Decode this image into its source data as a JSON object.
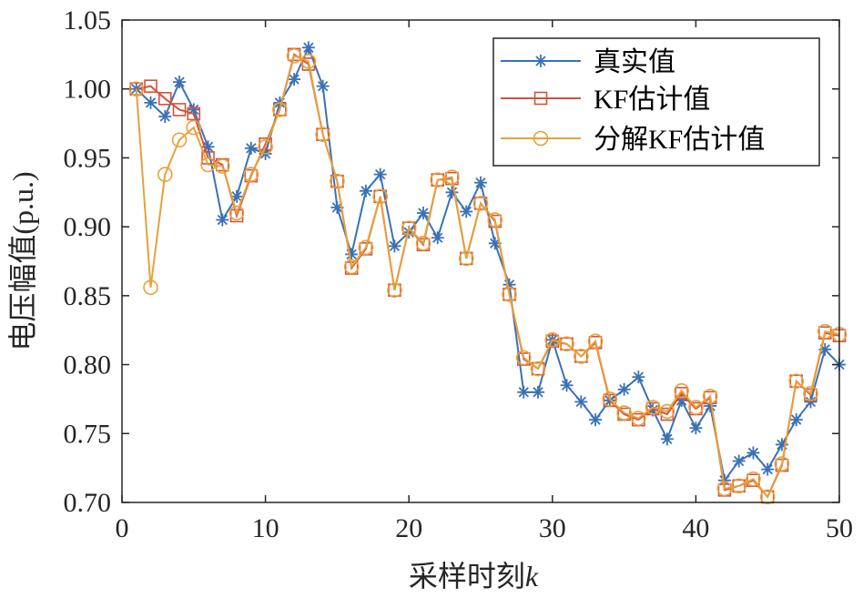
{
  "chart_data": {
    "type": "line",
    "xlabel": "采样时刻",
    "xlabel_var": "k",
    "ylabel": "电压幅值(p.u.)",
    "xlim": [
      0,
      50
    ],
    "ylim": [
      0.7,
      1.05
    ],
    "xticks": [
      0,
      10,
      20,
      30,
      40,
      50
    ],
    "xtick_labels": [
      "0",
      "10",
      "20",
      "30",
      "40",
      "50"
    ],
    "yticks": [
      0.7,
      0.75,
      0.8,
      0.85,
      0.9,
      0.95,
      1.0,
      1.05
    ],
    "ytick_labels": [
      "0.70",
      "0.75",
      "0.80",
      "0.85",
      "0.90",
      "0.95",
      "1.00",
      "1.05"
    ],
    "grid": false,
    "legend_position": "top-right",
    "x": [
      1,
      2,
      3,
      4,
      5,
      6,
      7,
      8,
      9,
      10,
      11,
      12,
      13,
      14,
      15,
      16,
      17,
      18,
      19,
      20,
      21,
      22,
      23,
      24,
      25,
      26,
      27,
      28,
      29,
      30,
      31,
      32,
      33,
      34,
      35,
      36,
      37,
      38,
      39,
      40,
      41,
      42,
      43,
      44,
      45,
      46,
      47,
      48,
      49,
      50
    ],
    "series": [
      {
        "name": "真实值",
        "color": "#3a72b5",
        "marker": "asterisk",
        "values": [
          1.0,
          0.99,
          0.98,
          1.005,
          0.985,
          0.958,
          0.905,
          0.922,
          0.957,
          0.953,
          0.99,
          1.007,
          1.03,
          1.002,
          0.914,
          0.88,
          0.926,
          0.938,
          0.886,
          0.896,
          0.91,
          0.892,
          0.925,
          0.911,
          0.932,
          0.888,
          0.858,
          0.78,
          0.78,
          0.818,
          0.785,
          0.773,
          0.76,
          0.774,
          0.782,
          0.791,
          0.767,
          0.746,
          0.774,
          0.754,
          0.77,
          0.716,
          0.73,
          0.736,
          0.724,
          0.742,
          0.76,
          0.773,
          0.811,
          0.8
        ]
      },
      {
        "name": "KF估计值",
        "color": "#d1533d",
        "marker": "square",
        "values": [
          1.0,
          1.002,
          0.993,
          0.985,
          0.982,
          0.95,
          0.945,
          0.908,
          0.937,
          0.96,
          0.985,
          1.025,
          1.018,
          0.967,
          0.933,
          0.87,
          0.884,
          0.922,
          0.854,
          0.899,
          0.887,
          0.934,
          0.935,
          0.877,
          0.917,
          0.904,
          0.851,
          0.804,
          0.797,
          0.817,
          0.815,
          0.806,
          0.816,
          0.774,
          0.764,
          0.76,
          0.768,
          0.764,
          0.779,
          0.768,
          0.776,
          0.709,
          0.712,
          0.716,
          0.704,
          0.727,
          0.788,
          0.778,
          0.823,
          0.821
        ]
      },
      {
        "name": "分解KF估计值",
        "color": "#e8a13a",
        "marker": "circle",
        "values": [
          1.0,
          0.856,
          0.938,
          0.963,
          0.972,
          0.945,
          0.944,
          0.91,
          0.938,
          0.958,
          0.985,
          1.024,
          1.02,
          0.967,
          0.933,
          0.871,
          0.885,
          0.922,
          0.854,
          0.899,
          0.888,
          0.934,
          0.936,
          0.877,
          0.917,
          0.905,
          0.851,
          0.805,
          0.797,
          0.818,
          0.815,
          0.806,
          0.817,
          0.775,
          0.765,
          0.761,
          0.769,
          0.766,
          0.781,
          0.769,
          0.777,
          0.71,
          0.712,
          0.717,
          0.704,
          0.728,
          0.788,
          0.779,
          0.824,
          0.822
        ]
      }
    ]
  }
}
